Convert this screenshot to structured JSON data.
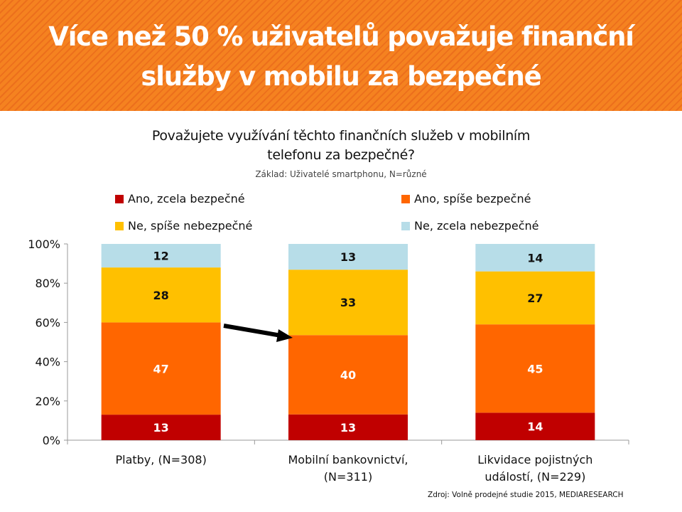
{
  "header": {
    "title_line1": "Více než 50 % uživatelů považuje finanční",
    "title_line2": "služby v mobilu za bezpečné"
  },
  "chart_data": {
    "type": "bar",
    "stacked": true,
    "title_line1": "Považujete využívání těchto finančních služeb v mobilním",
    "title_line2": "telefonu za bezpečné?",
    "subtitle": "Základ: Uživatelé smartphonu, N=různé",
    "categories": [
      [
        "Platby, (N=308)"
      ],
      [
        "Mobilní bankovnictví,",
        "(N=311)"
      ],
      [
        "Likvidace pojistných",
        "událostí, (N=229)"
      ]
    ],
    "series": [
      {
        "name": "Ano, zcela bezpečné",
        "color": "#c00000",
        "values": [
          13,
          13,
          14
        ]
      },
      {
        "name": "Ano, spíše bezpečné",
        "color": "#ff6600",
        "values": [
          47,
          40,
          45
        ]
      },
      {
        "name": "Ne, spíše nebezpečné",
        "color": "#ffc000",
        "values": [
          28,
          33,
          27
        ]
      },
      {
        "name": "Ne, zcela nebezpečné",
        "color": "#b7dde8",
        "values": [
          12,
          13,
          14
        ]
      }
    ],
    "yticks": [
      "0%",
      "20%",
      "40%",
      "60%",
      "80%",
      "100%"
    ],
    "ylim": [
      0,
      100
    ],
    "legend": "top",
    "grid": false,
    "annotation": "arrow from Platby bar to Mobilní bankovnictví bar"
  },
  "footer": {
    "source": "Zdroj: Volně prodejné studie 2015, MEDIARESEARCH"
  }
}
